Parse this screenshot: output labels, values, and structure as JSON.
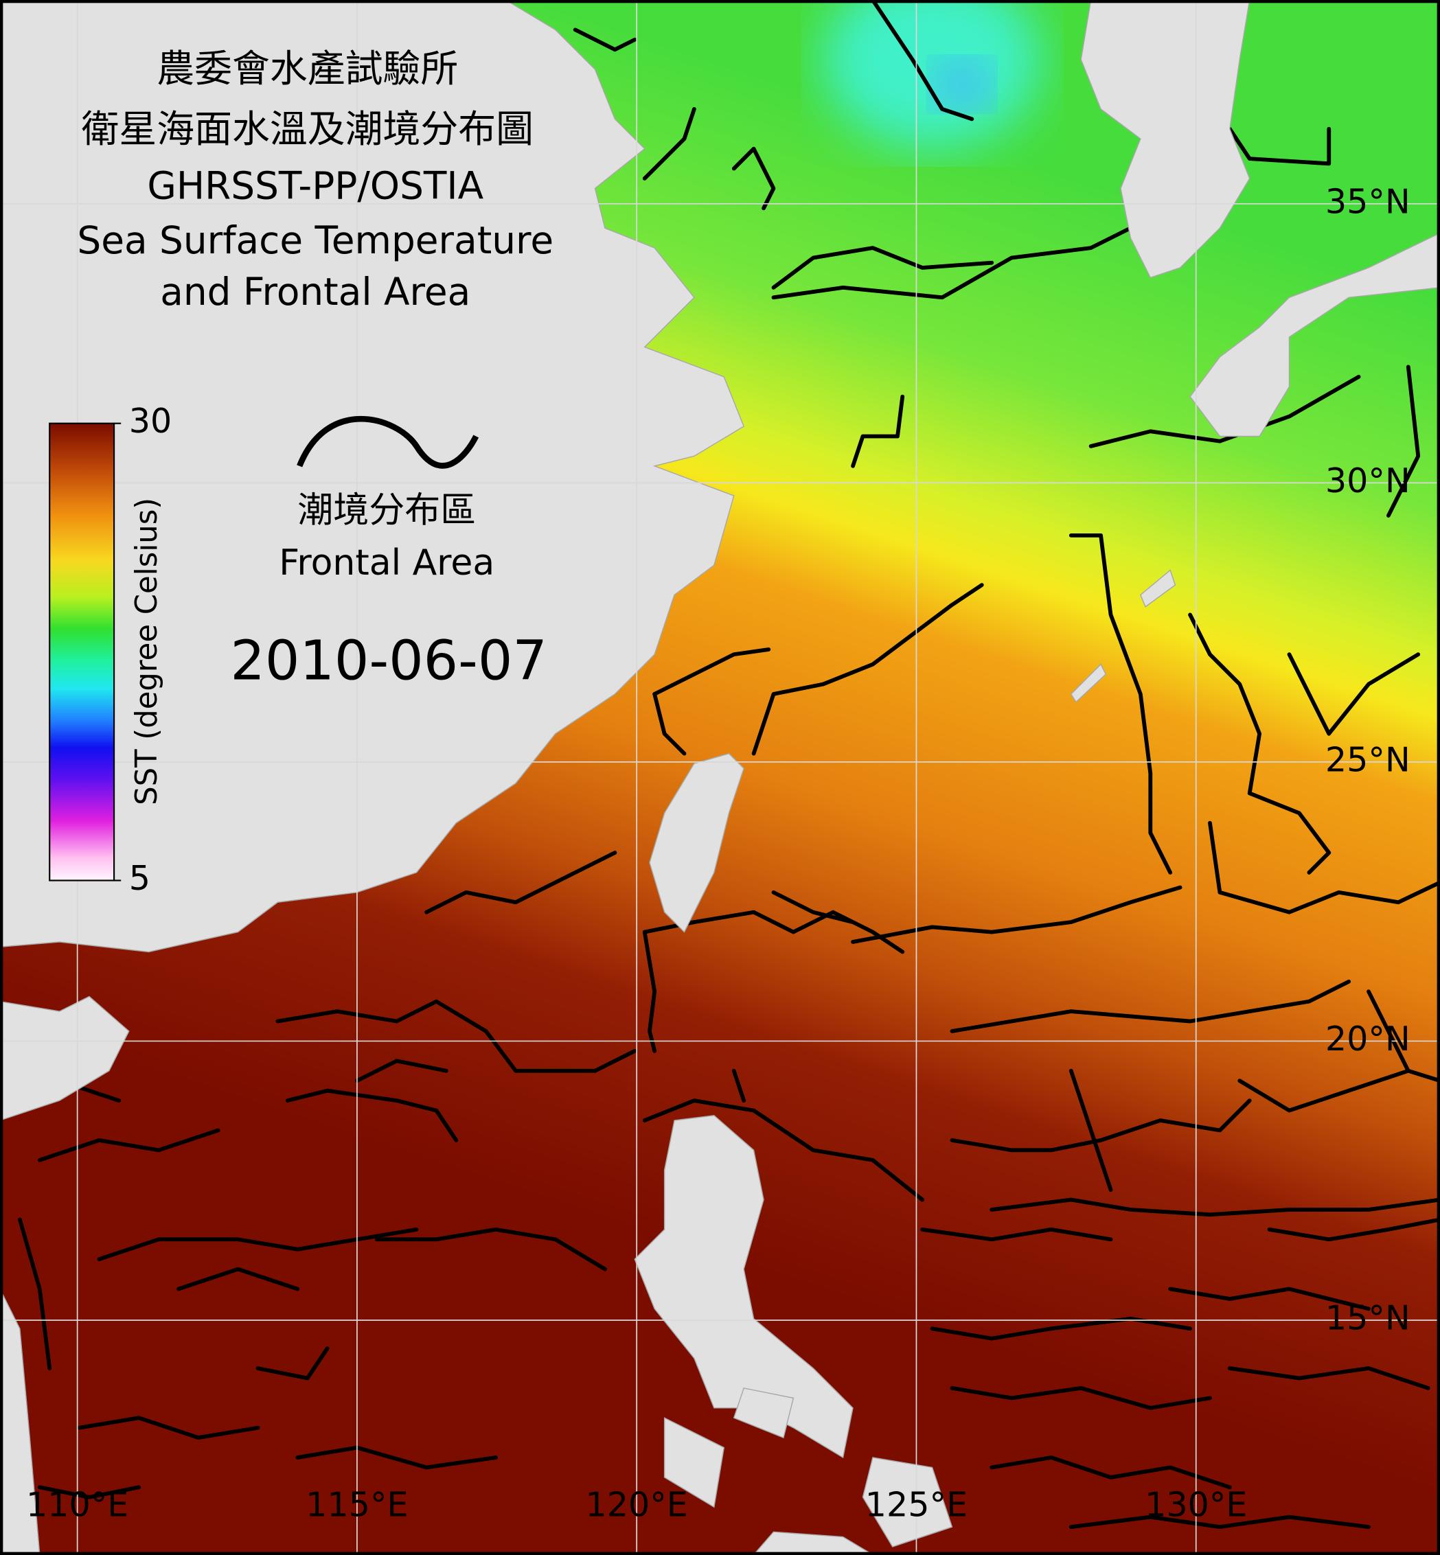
{
  "map": {
    "title": [
      "農委會水產試驗所",
      "衛星海面水溫及潮境分布圖",
      "GHRSST-PP/OSTIA",
      "Sea Surface Temperature",
      "and Frontal Area"
    ],
    "colorbar": {
      "label": "SST (degree Celsius)",
      "lim": [
        5,
        30
      ],
      "ticks": [
        5,
        30
      ]
    },
    "legend": {
      "label_zh": "潮境分布區",
      "label_en": "Frontal Area"
    },
    "date": "2010-06-07",
    "lat_ticks": [
      {
        "value": 35,
        "label": "35°N"
      },
      {
        "value": 30,
        "label": "30°N"
      },
      {
        "value": 25,
        "label": "25°N"
      },
      {
        "value": 20,
        "label": "20°N"
      },
      {
        "value": 15,
        "label": "15°N"
      }
    ],
    "lon_ticks": [
      {
        "value": 110,
        "label": "110°E"
      },
      {
        "value": 115,
        "label": "115°E"
      },
      {
        "value": 120,
        "label": "120°E"
      },
      {
        "value": 125,
        "label": "125°E"
      },
      {
        "value": 130,
        "label": "130°E"
      }
    ]
  }
}
